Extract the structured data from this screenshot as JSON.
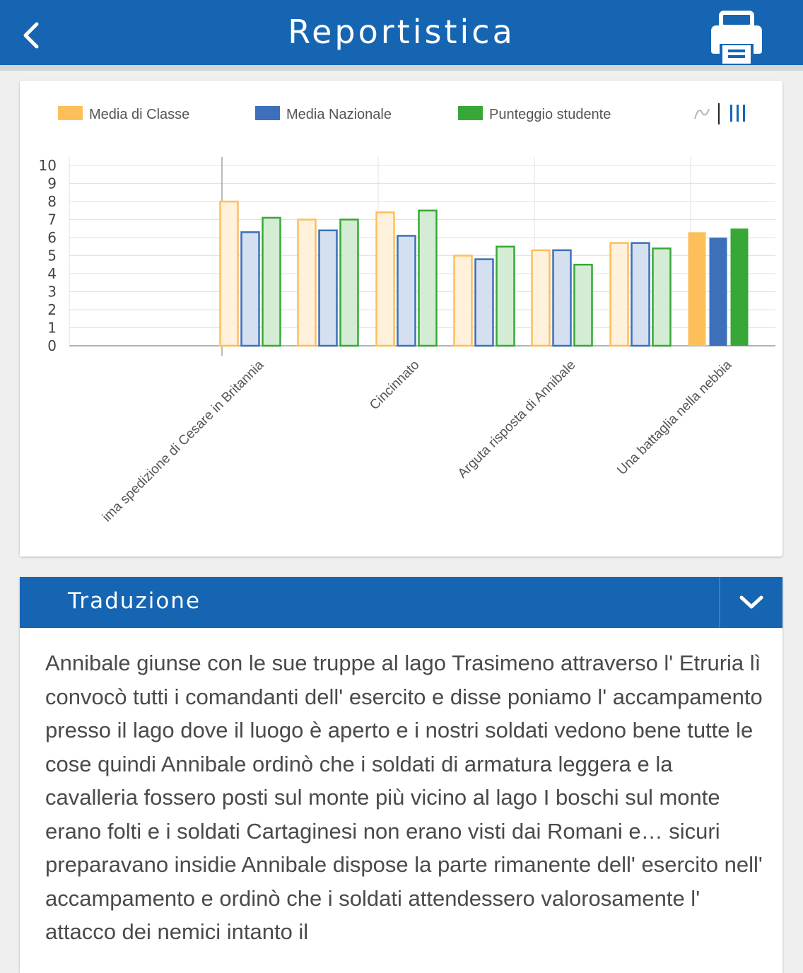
{
  "header": {
    "title": "Reportistica",
    "back_icon": "chevron-left-icon",
    "print_icon": "printer-icon"
  },
  "chart_data": {
    "type": "bar",
    "categories": [
      "Prima spedizione di Cesare in Britannia",
      "",
      "Cincinnato",
      "",
      "Arguta risposta di Annibale",
      "",
      "Una battaglia nella nebbia"
    ],
    "visible_category_labels": [
      "ima spedizione di Cesare in Britannia",
      "Cincinnato",
      "Arguta risposta di Annibale",
      "Una battaglia nella nebbia"
    ],
    "series": [
      {
        "name": "Media di Classe",
        "color": "#fdbf5a",
        "values": [
          8.0,
          7.0,
          7.4,
          5.0,
          5.3,
          5.7,
          6.3
        ]
      },
      {
        "name": "Media Nazionale",
        "color": "#3d6fbb",
        "values": [
          6.3,
          6.4,
          6.1,
          4.8,
          5.3,
          5.7,
          6.0
        ]
      },
      {
        "name": "Punteggio studente",
        "color": "#37a837",
        "values": [
          7.1,
          7.0,
          7.5,
          5.5,
          4.5,
          5.4,
          6.5
        ]
      }
    ],
    "ylim": [
      0,
      10
    ],
    "yticks": [
      "0",
      "1",
      "2",
      "3",
      "4",
      "5",
      "6",
      "7",
      "8",
      "9",
      "10"
    ],
    "grid": true,
    "legend_position": "top",
    "view_toggle": {
      "line_icon": "line-chart-icon",
      "bar_icon": "bar-chart-icon",
      "active": "bar"
    }
  },
  "panel": {
    "title": "Traduzione",
    "toggle_icon": "chevron-down-icon",
    "text": "Annibale giunse con le sue truppe al lago Trasimeno attraverso l' Etruria lì convocò tutti i comandanti dell' esercito e disse poniamo l' accampamento presso il lago dove il luogo è aperto e i nostri soldati vedono bene tutte le cose quindi Annibale ordinò che i soldati di armatura leggera e la cavalleria fossero posti sul monte più vicino al lago I boschi sul monte erano folti e i soldati Cartaginesi non erano visti dai Romani e… sicuri preparavano insidie Annibale dispose la parte rimanente dell' esercito nell' accampamento e ordinò che i soldati attendessero valorosamente l' attacco dei nemici intanto il"
  }
}
